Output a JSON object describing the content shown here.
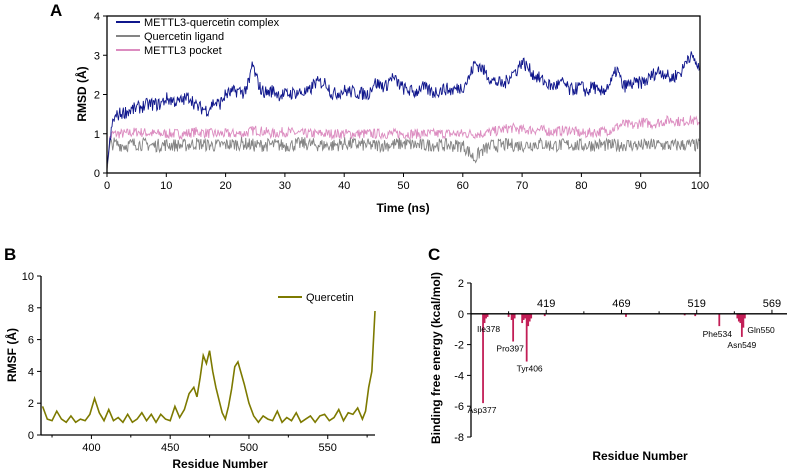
{
  "colors": {
    "complex": "#0f168c",
    "ligand": "#848484",
    "pocket": "#dc8cc0",
    "rmsf": "#7d7a00",
    "bars": "#c21e56",
    "axis": "#000000"
  },
  "chart_data": [
    {
      "panel": "A",
      "type": "line",
      "title": "",
      "xlabel": "Time (ns)",
      "ylabel": "RMSD (Å)",
      "xlim": [
        0,
        100
      ],
      "ylim": [
        0,
        4
      ],
      "xticks": [
        "0",
        "10",
        "20",
        "30",
        "40",
        "50",
        "60",
        "70",
        "80",
        "90",
        "100"
      ],
      "yticks": [
        "0",
        "1",
        "2",
        "3",
        "4"
      ],
      "legend_position": "top-left",
      "series": [
        {
          "name": "METTL3-quercetin complex",
          "key": "complex",
          "x": [
            0,
            1,
            2,
            3,
            4,
            5,
            7,
            9,
            10,
            12,
            14,
            15,
            17,
            18,
            19,
            20,
            21,
            22,
            23,
            24,
            24.5,
            25,
            26,
            27,
            28,
            29,
            30,
            32,
            34,
            35,
            37,
            38,
            40,
            42,
            44,
            45,
            47,
            48,
            50,
            51,
            52,
            53,
            55,
            57,
            58,
            60,
            61,
            62,
            63,
            65,
            67,
            68,
            69,
            70,
            72,
            74,
            75,
            77,
            78,
            80,
            81,
            82,
            83,
            85,
            86,
            87,
            88,
            90,
            91,
            92,
            93,
            94,
            95,
            96,
            97,
            98,
            99,
            100
          ],
          "y": [
            0.2,
            1.35,
            1.5,
            1.55,
            1.6,
            1.65,
            1.75,
            1.75,
            1.9,
            1.8,
            1.95,
            1.7,
            1.6,
            1.8,
            1.75,
            2.0,
            2.05,
            2.1,
            2.05,
            2.3,
            2.8,
            2.5,
            2.1,
            2.05,
            2.1,
            2.0,
            2.0,
            2.05,
            2.05,
            2.3,
            2.3,
            2.0,
            2.1,
            2.05,
            2.0,
            2.3,
            2.2,
            2.45,
            2.15,
            2.1,
            2.05,
            2.2,
            2.05,
            2.15,
            2.1,
            2.2,
            2.4,
            2.8,
            2.7,
            2.35,
            2.25,
            2.5,
            2.6,
            2.85,
            2.5,
            2.3,
            2.2,
            2.3,
            2.1,
            2.2,
            2.05,
            2.25,
            2.0,
            2.3,
            2.65,
            2.2,
            2.25,
            2.3,
            2.35,
            2.5,
            2.6,
            2.55,
            2.4,
            2.5,
            2.6,
            3.0,
            2.9,
            2.6
          ]
        },
        {
          "name": "Quercetin ligand",
          "key": "ligand",
          "x": [
            0,
            0.5,
            1,
            3,
            5,
            8,
            10,
            13,
            15,
            18,
            20,
            23,
            25,
            28,
            30,
            33,
            35,
            38,
            40,
            43,
            45,
            48,
            50,
            53,
            55,
            58,
            60,
            61,
            62,
            63,
            65,
            68,
            70,
            73,
            75,
            78,
            80,
            83,
            85,
            88,
            90,
            93,
            95,
            98,
            100
          ],
          "y": [
            0.1,
            0.7,
            0.75,
            0.7,
            0.75,
            0.7,
            0.72,
            0.7,
            0.75,
            0.7,
            0.72,
            0.75,
            0.7,
            0.72,
            0.7,
            0.75,
            0.72,
            0.7,
            0.75,
            0.72,
            0.7,
            0.72,
            0.75,
            0.7,
            0.72,
            0.7,
            0.7,
            0.55,
            0.35,
            0.55,
            0.7,
            0.72,
            0.7,
            0.75,
            0.7,
            0.72,
            0.7,
            0.72,
            0.7,
            0.72,
            0.7,
            0.72,
            0.7,
            0.72,
            0.7
          ]
        },
        {
          "name": "METTL3 pocket",
          "key": "pocket",
          "x": [
            0,
            0.5,
            1,
            3,
            5,
            8,
            10,
            13,
            15,
            18,
            20,
            23,
            25,
            28,
            30,
            33,
            35,
            38,
            40,
            43,
            45,
            48,
            50,
            53,
            55,
            58,
            60,
            63,
            65,
            68,
            70,
            73,
            75,
            78,
            80,
            83,
            85,
            87,
            89,
            90,
            92,
            95,
            97,
            98,
            100
          ],
          "y": [
            0.1,
            0.9,
            1.0,
            1.0,
            1.05,
            1.0,
            1.0,
            1.0,
            1.05,
            1.0,
            1.0,
            1.0,
            1.1,
            1.0,
            1.05,
            1.0,
            1.0,
            1.0,
            1.0,
            1.0,
            1.0,
            1.0,
            1.0,
            1.0,
            1.0,
            1.0,
            1.0,
            1.0,
            1.05,
            1.15,
            1.1,
            1.1,
            1.05,
            1.1,
            1.0,
            1.05,
            1.1,
            1.25,
            1.2,
            1.3,
            1.25,
            1.35,
            1.3,
            1.35,
            1.3
          ]
        }
      ]
    },
    {
      "panel": "B",
      "type": "line",
      "title": "",
      "xlabel": "Residue Number",
      "ylabel": "RMSF (Å)",
      "xlim": [
        368,
        580
      ],
      "ylim": [
        0,
        10
      ],
      "xticks": [
        "400",
        "450",
        "500",
        "550"
      ],
      "yticks": [
        "0",
        "2",
        "4",
        "6",
        "8",
        "10"
      ],
      "legend_position": "top-right",
      "series": [
        {
          "name": "Quercetin",
          "key": "rmsf",
          "x": [
            369,
            372,
            375,
            378,
            381,
            384,
            387,
            390,
            393,
            396,
            399,
            402,
            405,
            408,
            411,
            414,
            417,
            420,
            423,
            426,
            429,
            432,
            435,
            438,
            441,
            444,
            447,
            450,
            453,
            456,
            459,
            462,
            465,
            467,
            469,
            471,
            473,
            475,
            477,
            479,
            481,
            483,
            485,
            487,
            489,
            491,
            493,
            495,
            497,
            500,
            503,
            506,
            509,
            512,
            515,
            518,
            521,
            524,
            527,
            530,
            533,
            536,
            539,
            542,
            545,
            548,
            551,
            554,
            557,
            560,
            563,
            566,
            569,
            572,
            574,
            576,
            578,
            580
          ],
          "y": [
            1.8,
            1.0,
            0.9,
            1.5,
            1.0,
            0.8,
            1.2,
            0.8,
            1.0,
            0.9,
            1.3,
            2.3,
            1.4,
            0.9,
            1.6,
            0.9,
            1.1,
            0.8,
            1.3,
            0.8,
            1.0,
            1.4,
            0.9,
            1.3,
            0.8,
            1.3,
            1.0,
            0.9,
            1.8,
            1.1,
            1.6,
            2.6,
            3.0,
            2.4,
            3.6,
            5.0,
            4.5,
            5.3,
            4.0,
            3.0,
            2.2,
            1.4,
            1.0,
            1.8,
            2.9,
            4.3,
            4.6,
            3.9,
            3.2,
            2.0,
            1.2,
            0.8,
            1.2,
            1.0,
            0.9,
            1.5,
            0.8,
            1.1,
            0.9,
            1.4,
            0.8,
            1.0,
            1.2,
            0.8,
            1.2,
            1.3,
            0.9,
            1.1,
            1.6,
            0.9,
            1.4,
            1.3,
            1.7,
            1.0,
            1.5,
            3.0,
            4.0,
            7.8
          ]
        }
      ]
    },
    {
      "panel": "C",
      "type": "bar",
      "title": "",
      "xlabel": "Residue Number",
      "ylabel": "Binding free energy (kcal/mol)",
      "xlim": [
        369,
        579
      ],
      "ylim": [
        -8,
        2
      ],
      "xticks": [
        "419",
        "469",
        "519",
        "569"
      ],
      "yticks": [
        "2",
        "0",
        "-2",
        "-4",
        "-6",
        "-8"
      ],
      "bars": {
        "x": [
          377,
          378,
          379,
          380,
          394,
          396,
          397,
          398,
          403,
          404,
          405,
          406,
          407,
          408,
          409,
          418,
          472,
          511,
          518,
          534,
          546,
          547,
          548,
          549,
          550,
          551
        ],
        "y": [
          -5.8,
          -0.6,
          -0.3,
          -0.2,
          -0.2,
          -0.4,
          -1.8,
          -0.3,
          -0.6,
          -0.4,
          -0.3,
          -3.1,
          -0.8,
          -0.5,
          -0.3,
          -0.15,
          -0.2,
          -0.1,
          -0.15,
          -0.8,
          -0.3,
          -0.5,
          -0.6,
          -1.5,
          -0.9,
          -0.3
        ]
      },
      "annotations": [
        {
          "label": "Asp377",
          "x": 377,
          "y": -5.8
        },
        {
          "label": "Ile378",
          "x": 378,
          "y": -0.6
        },
        {
          "label": "Pro397",
          "x": 397,
          "y": -1.8
        },
        {
          "label": "Tyr406",
          "x": 406,
          "y": -3.1
        },
        {
          "label": "Phe534",
          "x": 534,
          "y": -0.8
        },
        {
          "label": "Asn549",
          "x": 549,
          "y": -1.5
        },
        {
          "label": "Gln550",
          "x": 550,
          "y": -0.9
        }
      ]
    }
  ]
}
